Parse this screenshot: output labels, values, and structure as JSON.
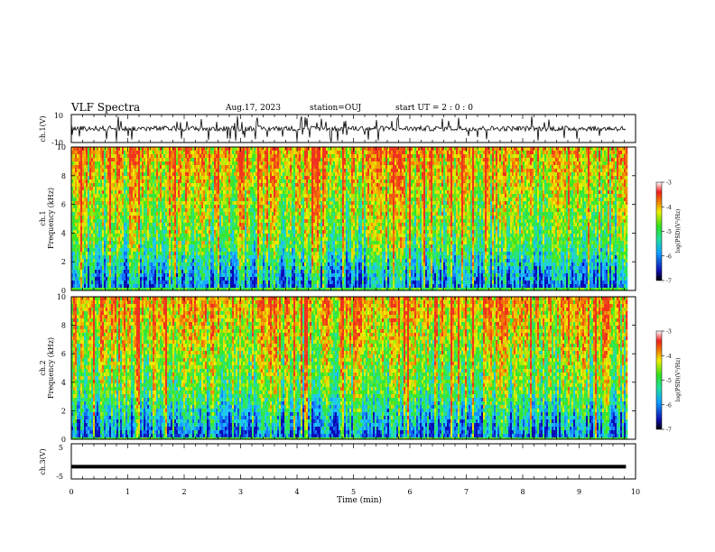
{
  "header": {
    "title": "VLF Spectra",
    "date": "Aug.17, 2023",
    "station": "station=OUJ",
    "start_ut": "start  UT =   2 : 0  : 0"
  },
  "chart_data": [
    {
      "type": "line",
      "panel": "ch1-waveform",
      "ylabel": "ch.1(V)",
      "ylim": [
        -10,
        10
      ],
      "yticklabels": [
        "10",
        "-10"
      ],
      "series": [
        {
          "x_range_min": [
            0,
            9.83
          ],
          "baseline_V": 0,
          "typical_amplitude_V": 3,
          "max_spike_V": 9
        }
      ]
    },
    {
      "type": "heatmap",
      "panel": "ch1-spectrogram",
      "ylabel": "ch.1\nFrequency  (kHz)",
      "ylim": [
        0,
        10
      ],
      "yticks": [
        0,
        2,
        4,
        6,
        8,
        10
      ],
      "xlim": [
        0,
        10
      ],
      "data_extent_min": 9.83,
      "colorbar": {
        "label": "log(PSD)(V²/Hz)",
        "range": [
          -7,
          -3
        ],
        "ticks": [
          -3,
          -4,
          -5,
          -6,
          -7
        ]
      }
    },
    {
      "type": "heatmap",
      "panel": "ch2-spectrogram",
      "ylabel": "ch.2\nFrequency  (kHz)",
      "ylim": [
        0,
        10
      ],
      "yticks": [
        0,
        2,
        4,
        6,
        8,
        10
      ],
      "xlim": [
        0,
        10
      ],
      "data_extent_min": 9.83,
      "colorbar": {
        "label": "log(PSD)(V²/Hz)",
        "range": [
          -7,
          -3
        ],
        "ticks": [
          -3,
          -4,
          -5,
          -6,
          -7
        ]
      }
    },
    {
      "type": "line",
      "panel": "ch3-waveform",
      "ylabel": "ch.3(V)",
      "ylim": [
        -5,
        5
      ],
      "yticklabels": [
        "5",
        "-5"
      ],
      "series": [
        {
          "x_range_min": [
            0,
            9.83
          ],
          "value_V": -1.5
        }
      ]
    }
  ],
  "xaxis": {
    "label": "Time  (min)",
    "ticks": [
      "0",
      "1",
      "2",
      "3",
      "4",
      "5",
      "6",
      "7",
      "8",
      "9",
      "10"
    ]
  },
  "ui": {
    "ch1_label_a": "ch.1",
    "ch1_label_b": "Frequency  (kHz)",
    "ch2_label_a": "ch.2",
    "ch2_label_b": "Frequency  (kHz)",
    "ch1v_label": "ch.1(V)",
    "ch3v_label": "ch.3(V)",
    "cbar_label": "log(PSD)(V²/Hz)"
  },
  "colors": {
    "low": "#0a0ab4",
    "mid_low": "#1ec8ff",
    "mid": "#28e628",
    "mid_high": "#f0f000",
    "high": "#f03c1e",
    "top": "#ffffff"
  }
}
